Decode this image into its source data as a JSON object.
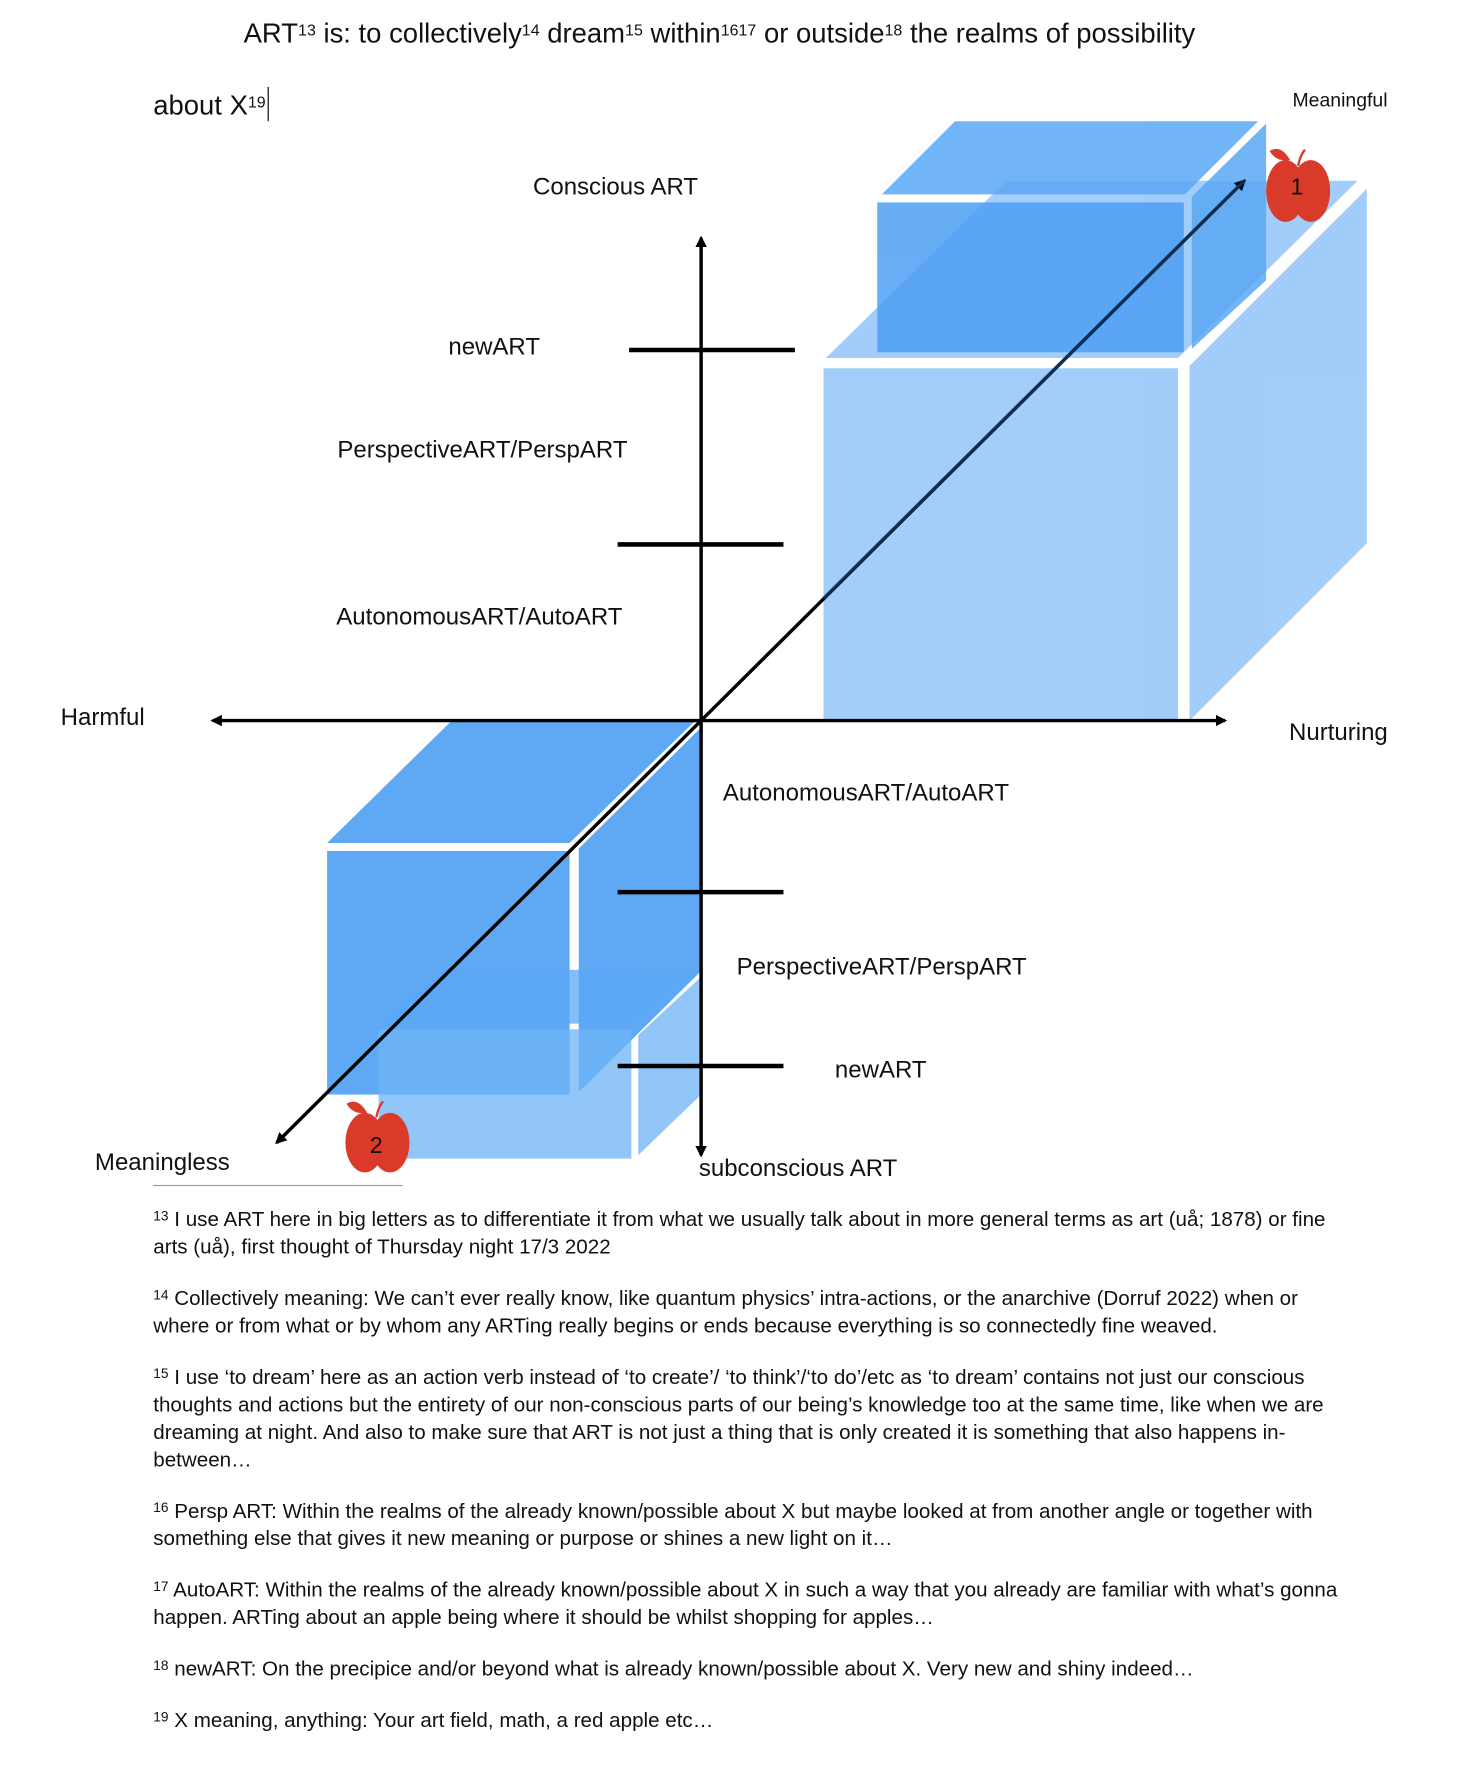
{
  "title": {
    "segments": [
      {
        "text": "ART",
        "sup": "13"
      },
      {
        "text": " is: to collectively",
        "sup": "14"
      },
      {
        "text": " dream",
        "sup": "15"
      },
      {
        "text": " within",
        "sup": "1617"
      },
      {
        "text": " or outside",
        "sup": "18"
      },
      {
        "text": " the realms of possibility",
        "sup": ""
      }
    ],
    "line2": "about X",
    "line2_sup": "19"
  },
  "diagram": {
    "meaningful": "Meaningful",
    "meaningless": "Meaningless",
    "conscious": "Conscious ART",
    "subconscious": "subconscious ART",
    "harmful": "Harmful",
    "nurturing": "Nurturing",
    "upper": {
      "new": "newART",
      "persp": "PerspectiveART/PerspART",
      "auto": "AutonomousART/AutoART"
    },
    "lower": {
      "auto": "AutonomousART/AutoART",
      "persp": "PerspectiveART/PerspART",
      "new": "newART"
    },
    "apple1": "1",
    "apple2": "2",
    "colors": {
      "cube_dark": "#5aa8f5",
      "cube_light": "#9ecbfa",
      "apple": "#d93a2a"
    }
  },
  "footnotes": [
    {
      "num": "13",
      "text": "I use ART here in big letters as to differentiate it from what we usually talk about in more general terms as art (uå; 1878) or fine arts (uå), first thought of Thursday night 17/3 2022"
    },
    {
      "num": "14",
      "text": "Collectively meaning: We can’t ever really know, like quantum physics’ intra-actions, or the anarchive (Dorruf 2022) when or where or from what or by whom any ARTing really begins or ends because everything is so connectedly fine weaved."
    },
    {
      "num": "15",
      "text": "I use ‘to dream’ here as an action verb instead of ‘to create’/ ‘to think’/‘to do’/etc as ‘to dream’ contains not just our conscious thoughts and actions but the entirety of our non-conscious parts of our being’s knowledge too at the same time, like when we are dreaming at night. And also to make sure that ART is not just a thing that is only created it is something that also happens in-between…"
    },
    {
      "num": "16",
      "text": "Persp ART: Within the realms of the already known/possible about X but maybe looked at from another angle or together with something else that gives it new meaning or purpose or shines a new light on it…"
    },
    {
      "num": "17",
      "text": "AutoART: Within the realms of the already known/possible about X in such a way that you already are familiar with what’s gonna happen. ARTing about an apple being where it should be whilst shopping for apples…"
    },
    {
      "num": "18",
      "text": "newART: On the precipice and/or beyond what is already known/possible about X. Very new and shiny indeed…"
    },
    {
      "num": "19",
      "text": "X meaning, anything: Your art field, math, a red apple etc…"
    }
  ]
}
